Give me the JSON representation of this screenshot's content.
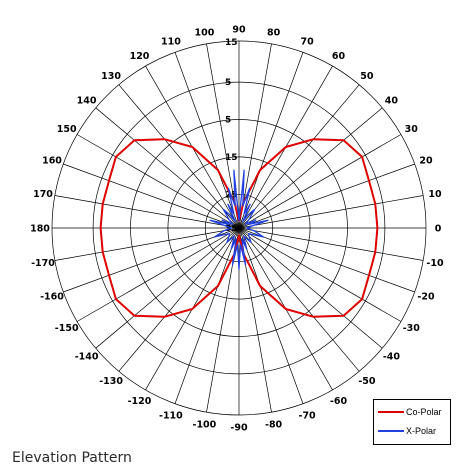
{
  "caption": "Elevation Pattern",
  "legend": {
    "copolar_label": "Co-Polar",
    "xpolar_label": "X-Polar"
  },
  "chart_data": {
    "type": "polar-line",
    "title": "Elevation Pattern",
    "angle_unit": "degrees",
    "angle_ticks": [
      90,
      80,
      70,
      60,
      50,
      40,
      30,
      20,
      10,
      0,
      -10,
      -20,
      -30,
      -40,
      -50,
      -60,
      -70,
      -80,
      -90,
      -100,
      -110,
      -120,
      -130,
      -140,
      -150,
      -160,
      -170,
      180,
      170,
      160,
      150,
      140,
      130,
      120,
      110,
      100
    ],
    "radial_tick_labels": [
      "15",
      "5",
      "5",
      "15",
      "25",
      "35"
    ],
    "grid": true,
    "legend_position": "bottom-right",
    "colors": {
      "co_polar": "#e00000",
      "x_polar": "#2040e0",
      "grid": "#000000"
    },
    "series": [
      {
        "name": "Co-Polar",
        "color": "#e00000",
        "angles": [
          0,
          10,
          20,
          30,
          40,
          50,
          60,
          70,
          80,
          85,
          90,
          95,
          100,
          110,
          120,
          130,
          140,
          150,
          160,
          170,
          180,
          190,
          200,
          210,
          220,
          230,
          240,
          250,
          260,
          265,
          270,
          275,
          280,
          290,
          300,
          310,
          320,
          330,
          340,
          350,
          360
        ],
        "r": [
          0.74,
          0.74,
          0.74,
          0.76,
          0.73,
          0.62,
          0.5,
          0.33,
          0.14,
          0.06,
          0.04,
          0.06,
          0.14,
          0.33,
          0.5,
          0.62,
          0.73,
          0.76,
          0.74,
          0.74,
          0.74,
          0.74,
          0.74,
          0.76,
          0.73,
          0.62,
          0.5,
          0.33,
          0.14,
          0.06,
          0.04,
          0.06,
          0.14,
          0.33,
          0.5,
          0.62,
          0.73,
          0.76,
          0.74,
          0.74,
          0.74
        ]
      },
      {
        "name": "X-Polar",
        "color": "#2040e0",
        "angles": [
          0,
          10,
          15,
          20,
          25,
          30,
          40,
          50,
          55,
          60,
          65,
          70,
          75,
          80,
          85,
          90,
          95,
          100,
          105,
          110,
          115,
          120,
          125,
          130,
          140,
          150,
          155,
          160,
          165,
          170,
          180,
          190,
          200,
          210,
          220,
          230,
          240,
          250,
          255,
          260,
          265,
          270,
          275,
          280,
          285,
          290,
          300,
          310,
          320,
          330,
          340,
          350,
          360
        ],
        "r": [
          0.04,
          0.08,
          0.16,
          0.06,
          0.1,
          0.04,
          0.07,
          0.13,
          0.09,
          0.04,
          0.14,
          0.08,
          0.22,
          0.12,
          0.31,
          0.04,
          0.31,
          0.12,
          0.22,
          0.08,
          0.14,
          0.04,
          0.09,
          0.13,
          0.07,
          0.04,
          0.1,
          0.06,
          0.16,
          0.08,
          0.04,
          0.08,
          0.14,
          0.06,
          0.07,
          0.1,
          0.05,
          0.12,
          0.06,
          0.2,
          0.09,
          0.22,
          0.09,
          0.2,
          0.06,
          0.12,
          0.05,
          0.1,
          0.07,
          0.06,
          0.14,
          0.08,
          0.04
        ]
      }
    ]
  }
}
